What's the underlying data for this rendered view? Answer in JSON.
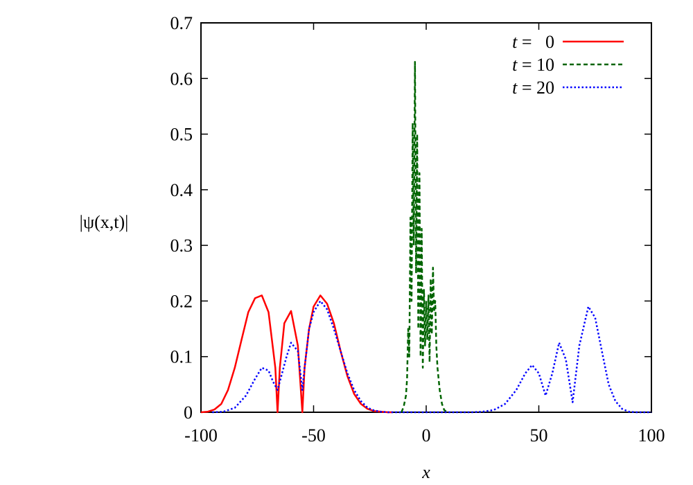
{
  "chart_data": {
    "type": "line",
    "title": "",
    "xlabel": "x",
    "ylabel": "|ψ(x,t)|",
    "xlim": [
      -100,
      100
    ],
    "ylim": [
      0,
      0.7
    ],
    "xticks": [
      -100,
      -50,
      0,
      50,
      100
    ],
    "yticks": [
      0,
      0.1,
      0.2,
      0.3,
      0.4,
      0.5,
      0.6,
      0.7
    ],
    "xtick_labels": [
      "-100",
      "-50",
      "0",
      "50",
      "100"
    ],
    "ytick_labels": [
      "0",
      "0.1",
      "0.2",
      "0.3",
      "0.4",
      "0.5",
      "0.6",
      "0.7"
    ],
    "grid": false,
    "legend_position": "top-right",
    "series": [
      {
        "name": "t =   0",
        "legend_prefix": "t",
        "legend_suffix": " =   0",
        "color": "#ff0000",
        "dash": "solid",
        "x": [
          -100,
          -97,
          -94,
          -91,
          -88,
          -85,
          -82,
          -79,
          -76,
          -73,
          -70,
          -67,
          -66,
          -65,
          -63,
          -60,
          -57,
          -55,
          -54,
          -52,
          -50,
          -47,
          -44,
          -41,
          -38,
          -35,
          -32,
          -29,
          -26,
          -23,
          -20,
          -17,
          -15
        ],
        "y": [
          0,
          0.001,
          0.005,
          0.015,
          0.04,
          0.08,
          0.13,
          0.18,
          0.205,
          0.21,
          0.18,
          0.08,
          0,
          0.08,
          0.16,
          0.182,
          0.12,
          0,
          0.08,
          0.15,
          0.19,
          0.21,
          0.195,
          0.16,
          0.11,
          0.065,
          0.033,
          0.015,
          0.006,
          0.002,
          0.001,
          0,
          0
        ]
      },
      {
        "name": "t = 10",
        "legend_prefix": "t",
        "legend_suffix": " = 10",
        "color": "#006400",
        "dash": "dashed",
        "x": [
          -11,
          -10,
          -9,
          -8.5,
          -8,
          -7.5,
          -7,
          -6.5,
          -6,
          -5.5,
          -5,
          -4.5,
          -4,
          -3.5,
          -3,
          -2.5,
          -2,
          -1.5,
          -1,
          -0.5,
          0,
          0.5,
          1,
          1.5,
          2,
          2.5,
          3,
          3.5,
          4,
          4.5,
          5,
          6,
          7,
          8,
          9,
          10
        ],
        "y": [
          0,
          0.01,
          0.03,
          0.06,
          0.15,
          0.1,
          0.35,
          0.2,
          0.52,
          0.3,
          0.63,
          0.25,
          0.5,
          0.15,
          0.43,
          0.1,
          0.33,
          0.08,
          0.22,
          0.12,
          0.2,
          0.13,
          0.21,
          0.09,
          0.24,
          0.14,
          0.26,
          0.18,
          0.2,
          0.12,
          0.08,
          0.04,
          0.015,
          0.004,
          0.001,
          0
        ]
      },
      {
        "name": "t = 20",
        "legend_prefix": "t",
        "legend_suffix": " = 20",
        "color": "#0000ff",
        "dash": "dotted",
        "x": [
          -95,
          -90,
          -85,
          -80,
          -76,
          -73,
          -70,
          -68,
          -66,
          -64,
          -62,
          -60,
          -57,
          -55,
          -54,
          -52,
          -50,
          -47,
          -44,
          -41,
          -38,
          -35,
          -32,
          -29,
          -26,
          -23,
          -20,
          -17,
          -15,
          20,
          25,
          30,
          35,
          40,
          44,
          47,
          50,
          53,
          56,
          59,
          62,
          65,
          68,
          72,
          75,
          78,
          81,
          84,
          87,
          90,
          93,
          96,
          100
        ],
        "y": [
          0,
          0.001,
          0.008,
          0.03,
          0.06,
          0.08,
          0.075,
          0.055,
          0.04,
          0.07,
          0.1,
          0.125,
          0.11,
          0.04,
          0.08,
          0.15,
          0.18,
          0.2,
          0.185,
          0.15,
          0.11,
          0.07,
          0.04,
          0.02,
          0.008,
          0.003,
          0.001,
          0,
          0,
          0,
          0.001,
          0.004,
          0.015,
          0.04,
          0.07,
          0.085,
          0.07,
          0.03,
          0.07,
          0.125,
          0.095,
          0.018,
          0.12,
          0.19,
          0.17,
          0.11,
          0.05,
          0.02,
          0.006,
          0.001,
          0,
          0,
          0
        ]
      }
    ]
  }
}
